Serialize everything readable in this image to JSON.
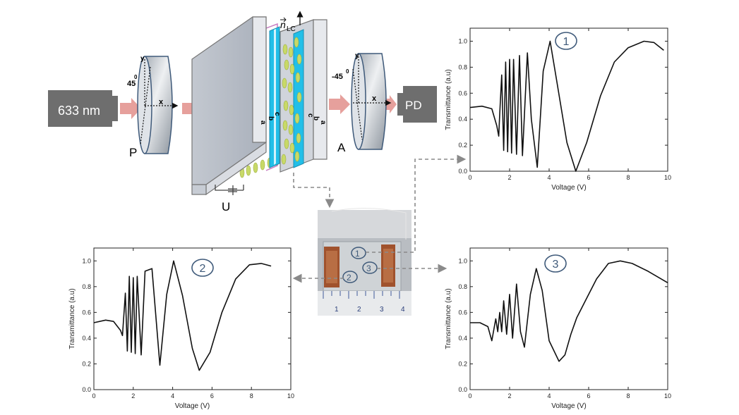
{
  "setup": {
    "laser_label": "633 nm",
    "polarizer_label": "P",
    "analyzer_label": "A",
    "detector_label": "PD",
    "voltage_label": "U",
    "director_label": "n",
    "director_sub": "LC",
    "polarizer_angle": "45",
    "analyzer_angle": "-45",
    "angle_sup": "0",
    "axis_x": "x",
    "axis_y": "y",
    "cell_layers_left": [
      "a",
      "b",
      "c"
    ],
    "cell_layers_right": [
      "c",
      "b",
      "a"
    ]
  },
  "photo": {
    "spot_labels": [
      "1",
      "2",
      "3"
    ],
    "ruler_numbers": [
      "1",
      "2",
      "3",
      "4"
    ]
  },
  "chart_data": [
    {
      "type": "line",
      "marker": "1",
      "xlabel": "Voltage (V)",
      "ylabel": "Transmittance (a.u)",
      "xlim": [
        0,
        10
      ],
      "ylim": [
        0,
        1.1
      ],
      "xticks": [
        0,
        2,
        4,
        6,
        8,
        10
      ],
      "yticks": [
        0.0,
        0.2,
        0.4,
        0.6,
        0.8,
        1.0
      ],
      "x": [
        0,
        0.6,
        1.1,
        1.35,
        1.45,
        1.5,
        1.6,
        1.7,
        1.8,
        1.9,
        2.0,
        2.1,
        2.2,
        2.35,
        2.5,
        2.65,
        2.9,
        3.1,
        3.4,
        3.7,
        4.05,
        4.4,
        4.9,
        5.35,
        5.9,
        6.6,
        7.3,
        8.0,
        8.8,
        9.3,
        9.8
      ],
      "y": [
        0.49,
        0.5,
        0.48,
        0.35,
        0.27,
        0.44,
        0.74,
        0.16,
        0.84,
        0.15,
        0.86,
        0.14,
        0.86,
        0.13,
        0.89,
        0.12,
        0.91,
        0.4,
        0.03,
        0.77,
        1.0,
        0.68,
        0.22,
        0.0,
        0.22,
        0.58,
        0.84,
        0.95,
        1.0,
        0.99,
        0.93
      ]
    },
    {
      "type": "line",
      "marker": "2",
      "xlabel": "Voltage (V)",
      "ylabel": "Transmittance (a.u)",
      "xlim": [
        0,
        10
      ],
      "ylim": [
        0,
        1.1
      ],
      "xticks": [
        0,
        2,
        4,
        6,
        8,
        10
      ],
      "yticks": [
        0.0,
        0.2,
        0.4,
        0.6,
        0.8,
        1.0
      ],
      "x": [
        0,
        0.6,
        1.0,
        1.35,
        1.45,
        1.6,
        1.7,
        1.8,
        1.9,
        2.0,
        2.1,
        2.2,
        2.4,
        2.6,
        2.95,
        3.35,
        3.7,
        4.05,
        4.5,
        5.0,
        5.35,
        5.9,
        6.5,
        7.2,
        7.9,
        8.5,
        9.0
      ],
      "y": [
        0.52,
        0.54,
        0.53,
        0.46,
        0.42,
        0.75,
        0.3,
        0.88,
        0.29,
        0.87,
        0.28,
        0.88,
        0.27,
        0.92,
        0.94,
        0.19,
        0.74,
        1.0,
        0.73,
        0.32,
        0.15,
        0.29,
        0.6,
        0.86,
        0.97,
        0.98,
        0.96
      ]
    },
    {
      "type": "line",
      "marker": "3",
      "xlabel": "Voltage (V)",
      "ylabel": "Transmittance (a.u)",
      "xlim": [
        0,
        10
      ],
      "ylim": [
        0,
        1.1
      ],
      "xticks": [
        0,
        2,
        4,
        6,
        8,
        10
      ],
      "yticks": [
        0.0,
        0.2,
        0.4,
        0.6,
        0.8,
        1.0
      ],
      "x": [
        0,
        0.5,
        0.9,
        1.1,
        1.3,
        1.4,
        1.5,
        1.6,
        1.7,
        1.85,
        2.0,
        2.15,
        2.35,
        2.55,
        2.75,
        3.05,
        3.35,
        3.65,
        4.0,
        4.5,
        4.8,
        5.1,
        5.4,
        5.8,
        6.4,
        7.0,
        7.6,
        8.2,
        9.0,
        10.0
      ],
      "y": [
        0.52,
        0.52,
        0.49,
        0.38,
        0.55,
        0.45,
        0.6,
        0.45,
        0.69,
        0.43,
        0.74,
        0.4,
        0.82,
        0.45,
        0.33,
        0.74,
        0.94,
        0.77,
        0.38,
        0.22,
        0.27,
        0.43,
        0.56,
        0.68,
        0.86,
        0.98,
        1.0,
        0.98,
        0.92,
        0.83
      ]
    }
  ],
  "colors": {
    "arrow": "#e6a09c",
    "laser_box": "#6e6e6e",
    "cell_gray": "#b3b9c4",
    "electrode_cyan": "#22bfe8",
    "lc_green": "#c8d968",
    "marker_stroke": "#3f5a7a",
    "dashed_link": "#8a8a8a"
  }
}
